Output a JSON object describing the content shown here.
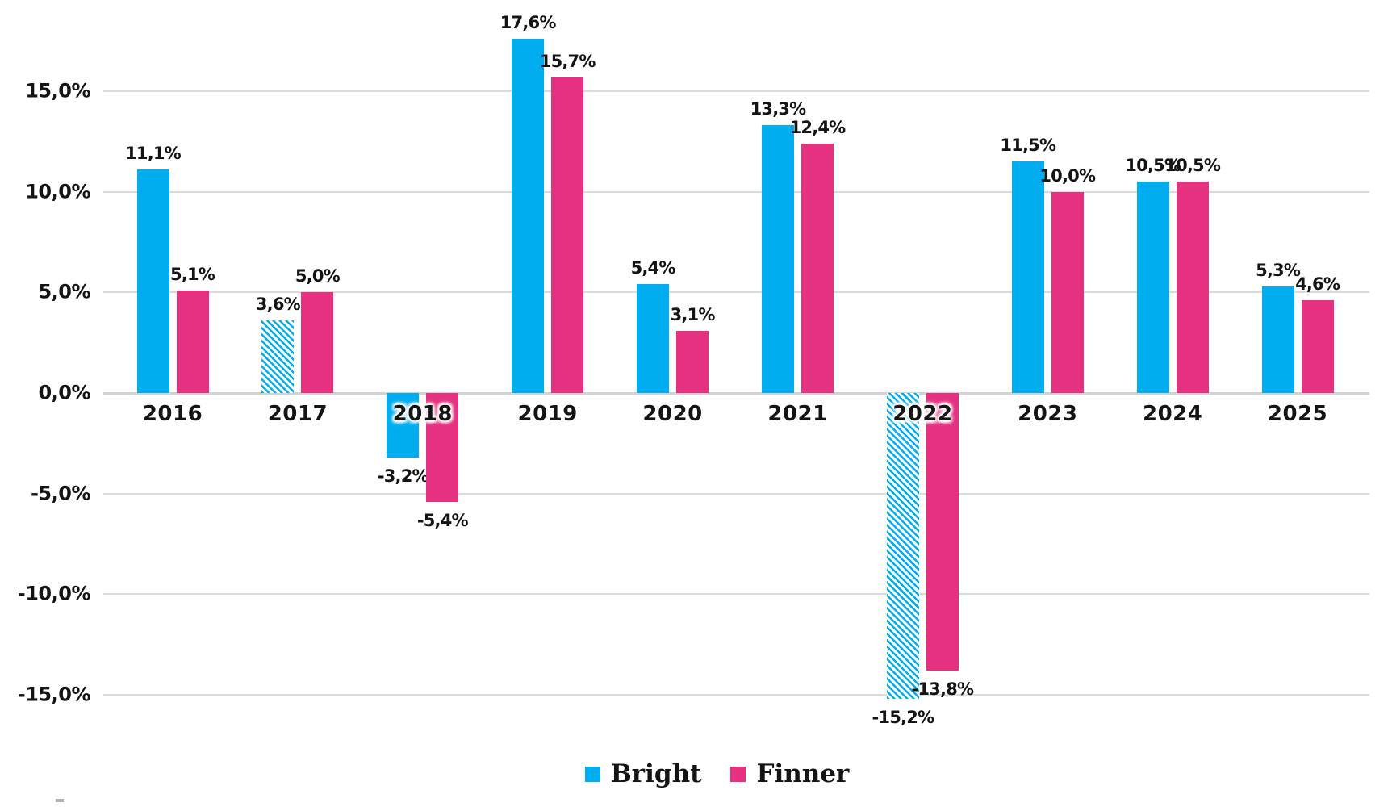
{
  "chart_data": {
    "type": "bar",
    "title": "",
    "xlabel": "",
    "ylabel": "",
    "number_format": "decimal-comma percent",
    "categories": [
      "2016",
      "2017",
      "2018",
      "2019",
      "2020",
      "2021",
      "2022",
      "2023",
      "2024",
      "2025"
    ],
    "series": [
      {
        "name": "Bright",
        "color": "#00AEEF",
        "values": [
          11.1,
          3.6,
          -3.2,
          17.6,
          5.4,
          13.3,
          -15.2,
          11.5,
          10.5,
          5.3
        ],
        "labels": [
          "11,1%",
          "3,6%",
          "-3,2%",
          "17,6%",
          "5,4%",
          "13,3%",
          "-15,2%",
          "11,5%",
          "10,5%",
          "5,3%"
        ],
        "hatched_indices": [
          1,
          6
        ]
      },
      {
        "name": "Finner",
        "color": "#E5317F",
        "values": [
          5.1,
          5.0,
          -5.4,
          15.7,
          3.1,
          12.4,
          -13.8,
          10.0,
          10.5,
          4.6
        ],
        "labels": [
          "5,1%",
          "5,0%",
          "-5,4%",
          "15,7%",
          "3,1%",
          "12,4%",
          "-13,8%",
          "10,0%",
          "10,5%",
          "4,6%"
        ],
        "hatched_indices": []
      }
    ],
    "y_axis": {
      "ticks": [
        {
          "value": 15,
          "label": "15,0%"
        },
        {
          "value": 10,
          "label": "10,0%"
        },
        {
          "value": 5,
          "label": "5,0%"
        },
        {
          "value": 0,
          "label": "0,0%"
        },
        {
          "value": -5,
          "label": "-5,0%"
        },
        {
          "value": -10,
          "label": "-10,0%"
        },
        {
          "value": -15,
          "label": "-15,0%"
        }
      ],
      "ylim": [
        -17.5,
        19.5
      ],
      "grid": true
    },
    "legend": {
      "position": "bottom",
      "items": [
        "Bright",
        "Finner"
      ]
    },
    "colors": {
      "gridline": "#DBDBDB",
      "text": "#141414",
      "background": "#FFFFFF"
    }
  }
}
